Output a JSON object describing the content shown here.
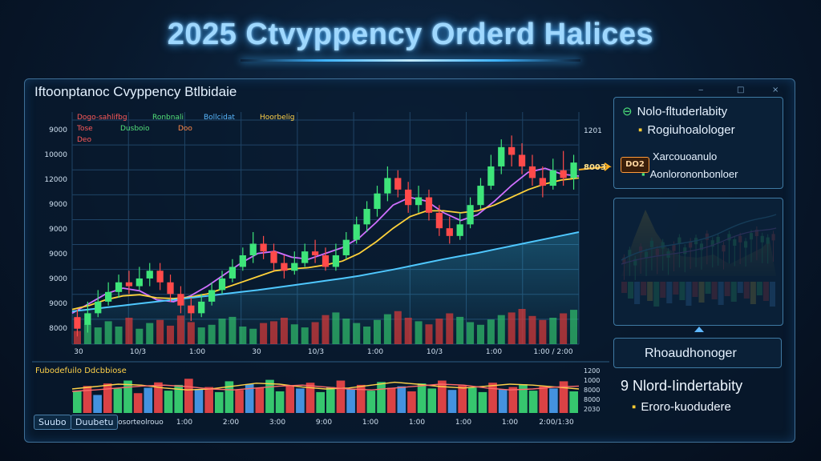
{
  "title": "2025 Ctvyppency Orderd Halices",
  "panel": {
    "title": "Iftoonptanoc Cvyppency Btlbidaie",
    "window_controls": [
      "‒",
      "□",
      "×"
    ]
  },
  "legend": {
    "row1": [
      {
        "text": "Dogo-sahlifbg",
        "color": "#ff5a5a"
      },
      {
        "text": "Ronbnali",
        "color": "#53e07a"
      },
      {
        "text": "Bollcidat",
        "color": "#59b8ff"
      },
      {
        "text": "Hoorbelig",
        "color": "#ffd24a"
      }
    ],
    "row2": [
      {
        "text": "Tose",
        "color": "#ff5a5a"
      },
      {
        "text": "Dusboio",
        "color": "#53e07a"
      },
      {
        "text": "Doo",
        "color": "#ff8a4a"
      }
    ],
    "row3": [
      {
        "text": "Deo",
        "color": "#ff5a5a"
      }
    ]
  },
  "y_axis_labels": [
    "9000",
    "10000",
    "12000",
    "9000",
    "9000",
    "9000",
    "9000",
    "9000",
    "8000"
  ],
  "x_axis_labels": [
    "30",
    "10/3",
    "1:00",
    "30",
    "10/3",
    "1:00",
    "10/3",
    "1:00",
    "1:00 / 2:00"
  ],
  "right_axis_labels": [
    "1201"
  ],
  "price_tag": "8003",
  "chart_data": {
    "type": "candlestick",
    "title": "Iftoonptanoc Cvyppency Btlbidaie",
    "candles": [
      {
        "o": 8500,
        "c": 8200,
        "h": 8700,
        "l": 8000
      },
      {
        "o": 8300,
        "c": 8600,
        "h": 8900,
        "l": 8100
      },
      {
        "o": 8600,
        "c": 8900,
        "h": 9200,
        "l": 8500
      },
      {
        "o": 8900,
        "c": 9150,
        "h": 9400,
        "l": 8800
      },
      {
        "o": 9150,
        "c": 9400,
        "h": 9600,
        "l": 9000
      },
      {
        "o": 9400,
        "c": 9300,
        "h": 9700,
        "l": 9100
      },
      {
        "o": 9300,
        "c": 9500,
        "h": 9800,
        "l": 9200
      },
      {
        "o": 9500,
        "c": 9700,
        "h": 9900,
        "l": 9300
      },
      {
        "o": 9700,
        "c": 9400,
        "h": 9900,
        "l": 9200
      },
      {
        "o": 9400,
        "c": 9100,
        "h": 9600,
        "l": 8900
      },
      {
        "o": 9100,
        "c": 8800,
        "h": 9300,
        "l": 8600
      },
      {
        "o": 8800,
        "c": 8600,
        "h": 9000,
        "l": 8400
      },
      {
        "o": 8600,
        "c": 8900,
        "h": 9100,
        "l": 8500
      },
      {
        "o": 8900,
        "c": 9200,
        "h": 9400,
        "l": 8800
      },
      {
        "o": 9200,
        "c": 9500,
        "h": 9700,
        "l": 9100
      },
      {
        "o": 9500,
        "c": 9800,
        "h": 10000,
        "l": 9400
      },
      {
        "o": 9800,
        "c": 10100,
        "h": 10300,
        "l": 9700
      },
      {
        "o": 10100,
        "c": 10400,
        "h": 10700,
        "l": 9900
      },
      {
        "o": 10400,
        "c": 10200,
        "h": 10600,
        "l": 10000
      },
      {
        "o": 10200,
        "c": 9900,
        "h": 10400,
        "l": 9700
      },
      {
        "o": 9900,
        "c": 9700,
        "h": 10100,
        "l": 9500
      },
      {
        "o": 9700,
        "c": 9900,
        "h": 10200,
        "l": 9600
      },
      {
        "o": 9900,
        "c": 10200,
        "h": 10400,
        "l": 9800
      },
      {
        "o": 10200,
        "c": 10100,
        "h": 10500,
        "l": 9900
      },
      {
        "o": 10100,
        "c": 9800,
        "h": 10300,
        "l": 9700
      },
      {
        "o": 9800,
        "c": 10100,
        "h": 10400,
        "l": 9700
      },
      {
        "o": 10100,
        "c": 10500,
        "h": 10700,
        "l": 10000
      },
      {
        "o": 10500,
        "c": 10900,
        "h": 11100,
        "l": 10400
      },
      {
        "o": 10900,
        "c": 11300,
        "h": 11500,
        "l": 10700
      },
      {
        "o": 11300,
        "c": 11700,
        "h": 11900,
        "l": 11100
      },
      {
        "o": 11700,
        "c": 12100,
        "h": 12400,
        "l": 11500
      },
      {
        "o": 12100,
        "c": 11800,
        "h": 12300,
        "l": 11600
      },
      {
        "o": 11800,
        "c": 11400,
        "h": 12000,
        "l": 11200
      },
      {
        "o": 11400,
        "c": 11600,
        "h": 11900,
        "l": 11200
      },
      {
        "o": 11600,
        "c": 11200,
        "h": 11800,
        "l": 11000
      },
      {
        "o": 11200,
        "c": 10800,
        "h": 11400,
        "l": 10600
      },
      {
        "o": 10800,
        "c": 10600,
        "h": 11100,
        "l": 10400
      },
      {
        "o": 10600,
        "c": 10900,
        "h": 11200,
        "l": 10500
      },
      {
        "o": 10900,
        "c": 11400,
        "h": 11600,
        "l": 10800
      },
      {
        "o": 11400,
        "c": 11900,
        "h": 12100,
        "l": 11300
      },
      {
        "o": 11900,
        "c": 12400,
        "h": 12700,
        "l": 11800
      },
      {
        "o": 12400,
        "c": 12900,
        "h": 13100,
        "l": 12200
      },
      {
        "o": 12900,
        "c": 12700,
        "h": 13200,
        "l": 12400
      },
      {
        "o": 12700,
        "c": 12400,
        "h": 13000,
        "l": 12200
      },
      {
        "o": 12400,
        "c": 12100,
        "h": 12700,
        "l": 11900
      },
      {
        "o": 12100,
        "c": 11900,
        "h": 12400,
        "l": 11600
      },
      {
        "o": 11900,
        "c": 12300,
        "h": 12600,
        "l": 11800
      },
      {
        "o": 12300,
        "c": 12100,
        "h": 12800,
        "l": 11900
      },
      {
        "o": 12100,
        "c": 12500,
        "h": 12700,
        "l": 11800
      }
    ],
    "series": [
      {
        "values": [
          8600,
          8850,
          9100,
          9250,
          9180,
          8950,
          8900,
          9050,
          9300,
          9600,
          9900,
          10150,
          10200,
          10050,
          10000,
          10150,
          10300,
          10550,
          10950,
          11400,
          11600,
          11500,
          11200,
          11000,
          11150,
          11500,
          11900,
          12250,
          12350,
          12200,
          12150
        ],
        "color": "#d070ff"
      },
      {
        "values": [
          8700,
          8800,
          8950,
          9050,
          9080,
          9000,
          8980,
          9020,
          9100,
          9250,
          9400,
          9550,
          9700,
          9750,
          9780,
          9850,
          9950,
          10150,
          10450,
          10800,
          11100,
          11250,
          11250,
          11200,
          11250,
          11400,
          11600,
          11800,
          11950,
          12050,
          12100
        ],
        "color": "#ffd23a"
      },
      {
        "values": [
          8650,
          8700,
          8750,
          8800,
          8850,
          8900,
          8950,
          9000,
          9050,
          9100,
          9150,
          9200,
          9260,
          9320,
          9380,
          9440,
          9500,
          9570,
          9650,
          9730,
          9820,
          9910,
          10000,
          10080,
          10160,
          10250,
          10340,
          10430,
          10520,
          10610,
          10700
        ],
        "color": "#4fc8ff"
      }
    ],
    "volumes": [
      30,
      45,
      38,
      52,
      40,
      60,
      35,
      48,
      55,
      42,
      65,
      50,
      38,
      44,
      58,
      62,
      40,
      35,
      48,
      52,
      60,
      45,
      38,
      50,
      66,
      72,
      58,
      48,
      40,
      55,
      68,
      75,
      60,
      52,
      45,
      58,
      70,
      62,
      50,
      44,
      56,
      66,
      72,
      80,
      64,
      55,
      60,
      70,
      78
    ],
    "ylim": [
      7800,
      13600
    ]
  },
  "lower_chart": {
    "title": "Fubodefuilo Ddcbbiose",
    "y_labels": [
      "1200",
      "1000",
      "8000",
      "8000",
      "2030"
    ],
    "x_labels": [
      "Suubo",
      "Duubetu",
      "Dosorteolrouo",
      "1:00",
      "2:00",
      "3:00",
      "9:00",
      "1:00",
      "1:00",
      "1:00",
      "1:00",
      "2:00/1:30"
    ],
    "line1": [
      50,
      55,
      60,
      58,
      52,
      48,
      50,
      56,
      62,
      60,
      54,
      50,
      52,
      58,
      64,
      60,
      55,
      52,
      56,
      60,
      58,
      54,
      50
    ],
    "line2": [
      45,
      48,
      52,
      56,
      58,
      55,
      50,
      48,
      52,
      56,
      58,
      54,
      50,
      48,
      52,
      56,
      60,
      58,
      52,
      48,
      50,
      54,
      56
    ],
    "bars": [
      60,
      75,
      50,
      82,
      68,
      90,
      55,
      70,
      85,
      62,
      78,
      95,
      66,
      72,
      58,
      88,
      64,
      80,
      70,
      92,
      60,
      76,
      68,
      84,
      58,
      72,
      90,
      66,
      78,
      62,
      86,
      70,
      74,
      60,
      82,
      68,
      90,
      64,
      76,
      70,
      58,
      84,
      66,
      72,
      80,
      62,
      74,
      68,
      88,
      60
    ]
  },
  "sidebar": {
    "box1": {
      "line1": "Nolo-fltuderlabity",
      "line2": "Rogiuhoalologer",
      "line3": "Xarcouoanulo",
      "line4": "Aonlorononbonloer",
      "badge": "DO2"
    },
    "mini_chart": {
      "bars": [
        40,
        55,
        35,
        60,
        48,
        70,
        52,
        65,
        45,
        58,
        72,
        50,
        62,
        68,
        55,
        75,
        60,
        66,
        48,
        70,
        58,
        64,
        52,
        68,
        74,
        60,
        56,
        62
      ]
    },
    "label_box": "Rhoaudhonoger",
    "bottom_line1": "9 Nlord-Iindertabity",
    "bottom_line2": "Eroro-kuodudere"
  }
}
